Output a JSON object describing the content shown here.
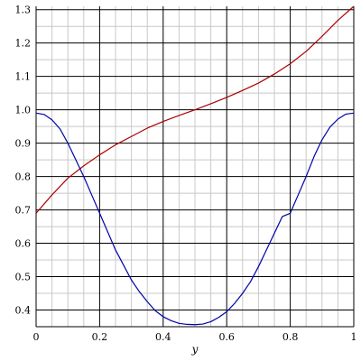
{
  "chart_data": {
    "type": "line",
    "title": "",
    "xlabel": "y",
    "ylabel": "",
    "xlim": [
      0,
      1
    ],
    "ylim": [
      0.35,
      1.31
    ],
    "grid": true,
    "x_ticks": [
      {
        "value": 0,
        "label": "0"
      },
      {
        "value": 0.2,
        "label": "0.2"
      },
      {
        "value": 0.4,
        "label": "0.4"
      },
      {
        "value": 0.6,
        "label": "0.6"
      },
      {
        "value": 0.8,
        "label": "0.8"
      },
      {
        "value": 1,
        "label": "1"
      }
    ],
    "y_ticks": [
      {
        "value": 0.4,
        "label": "0.4"
      },
      {
        "value": 0.5,
        "label": "0.5"
      },
      {
        "value": 0.6,
        "label": "0.6"
      },
      {
        "value": 0.7,
        "label": "0.7"
      },
      {
        "value": 0.8,
        "label": "0.8"
      },
      {
        "value": 0.9,
        "label": "0.9"
      },
      {
        "value": 1.0,
        "label": "1.0"
      },
      {
        "value": 1.1,
        "label": "1.1"
      },
      {
        "value": 1.2,
        "label": "1.2"
      },
      {
        "value": 1.3,
        "label": "1.3"
      }
    ],
    "colors": {
      "grid_major": "#000000",
      "grid_minor": "#c8c8c8",
      "background": "#ffffff"
    },
    "series": [
      {
        "color": "#aa0000",
        "x": [
          0,
          0.05,
          0.1,
          0.15,
          0.2,
          0.25,
          0.3,
          0.35,
          0.4,
          0.45,
          0.5,
          0.55,
          0.6,
          0.65,
          0.7,
          0.75,
          0.8,
          0.85,
          0.9,
          0.95,
          1.0
        ],
        "y": [
          0.69,
          0.745,
          0.795,
          0.832,
          0.865,
          0.895,
          0.92,
          0.945,
          0.965,
          0.983,
          1.0,
          1.018,
          1.037,
          1.058,
          1.08,
          1.107,
          1.138,
          1.175,
          1.22,
          1.268,
          1.31
        ]
      },
      {
        "color": "#0000aa",
        "x": [
          0,
          0.025,
          0.05,
          0.075,
          0.1,
          0.125,
          0.15,
          0.175,
          0.2,
          0.225,
          0.25,
          0.275,
          0.3,
          0.325,
          0.35,
          0.375,
          0.4,
          0.425,
          0.45,
          0.475,
          0.5,
          0.525,
          0.55,
          0.575,
          0.6,
          0.625,
          0.65,
          0.675,
          0.7,
          0.725,
          0.75,
          0.775,
          0.8,
          0.825,
          0.85,
          0.875,
          0.9,
          0.925,
          0.95,
          0.975,
          1.0
        ],
        "y": [
          0.99,
          0.986,
          0.97,
          0.943,
          0.9,
          0.85,
          0.8,
          0.745,
          0.69,
          0.635,
          0.58,
          0.535,
          0.49,
          0.455,
          0.425,
          0.398,
          0.38,
          0.368,
          0.36,
          0.357,
          0.356,
          0.358,
          0.365,
          0.378,
          0.395,
          0.42,
          0.45,
          0.485,
          0.53,
          0.58,
          0.63,
          0.68,
          0.69,
          0.745,
          0.8,
          0.86,
          0.91,
          0.948,
          0.972,
          0.987,
          0.99
        ]
      }
    ]
  }
}
